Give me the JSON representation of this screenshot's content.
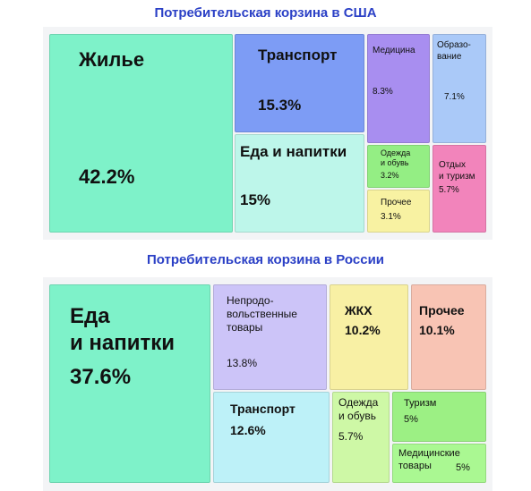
{
  "chart_data": [
    {
      "type": "treemap",
      "title": "Потребительская корзина в США",
      "categories": [
        "Жилье",
        "Транспорт",
        "Еда и напитки",
        "Медицина",
        "Образо-\nвание",
        "Одежда\nи обувь",
        "Прочее",
        "Отдых\nи туризм"
      ],
      "values": [
        42.2,
        15.3,
        15,
        8.3,
        7.1,
        3.2,
        3.1,
        5.7
      ],
      "value_labels": [
        "42.2%",
        "15.3%",
        "15%",
        "8.3%",
        "7.1%",
        "3.2%",
        "3.1%",
        "5.7%"
      ],
      "colors": [
        "#7ef2c9",
        "#7d9cf5",
        "#bdf6ea",
        "#a88ef0",
        "#aac9f8",
        "#94ee84",
        "#f8f2a2",
        "#f284bb"
      ]
    },
    {
      "type": "treemap",
      "title": "Потребительская корзина в России",
      "categories": [
        "Еда\nи напитки",
        "Непродо-\nвольственные\nтовары",
        "ЖКХ",
        "Прочее",
        "Транспорт",
        "Одежда\nи обувь",
        "Туризм",
        "Медицинские\nтовары"
      ],
      "values": [
        37.6,
        13.8,
        10.2,
        10.1,
        12.6,
        5.7,
        5,
        5
      ],
      "value_labels": [
        "37.6%",
        "13.8%",
        "10.2%",
        "10.1%",
        "12.6%",
        "5.7%",
        "5%",
        "5%"
      ],
      "colors": [
        "#7ef2c9",
        "#ccc4f8",
        "#f8f0a4",
        "#f8c4b4",
        "#bdf1f8",
        "#cef8a6",
        "#9cf084",
        "#aaf892"
      ]
    }
  ]
}
